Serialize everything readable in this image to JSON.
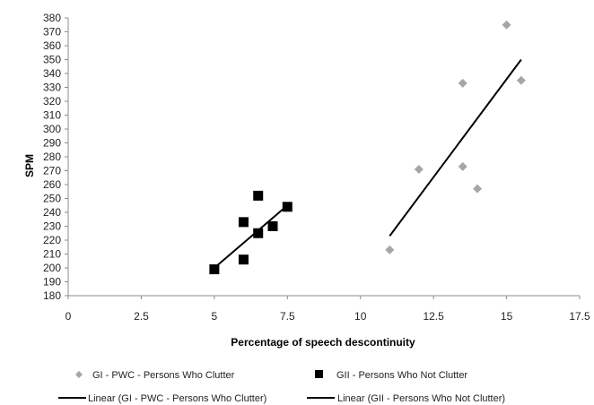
{
  "chart_data": {
    "type": "scatter",
    "title": "",
    "xlabel": "Percentage of speech descontinuity",
    "ylabel": "SPM",
    "xlim": [
      0,
      17.5
    ],
    "ylim": [
      180,
      380
    ],
    "x_ticks": [
      "0",
      "2.5",
      "5",
      "7.5",
      "10",
      "12.5",
      "15",
      "17.5"
    ],
    "y_ticks": [
      "180",
      "190",
      "200",
      "210",
      "220",
      "230",
      "240",
      "250",
      "260",
      "270",
      "280",
      "290",
      "300",
      "310",
      "320",
      "330",
      "340",
      "350",
      "360",
      "370",
      "380"
    ],
    "grid": false,
    "legend_position": "bottom",
    "series": [
      {
        "name": "GI - PWC - Persons  Who Clutter",
        "marker": "diamond",
        "color": "#a6a6a6",
        "points": [
          {
            "x": 11,
            "y": 213
          },
          {
            "x": 12,
            "y": 271
          },
          {
            "x": 13.5,
            "y": 273
          },
          {
            "x": 13.5,
            "y": 333
          },
          {
            "x": 14,
            "y": 257
          },
          {
            "x": 15,
            "y": 375
          },
          {
            "x": 15.5,
            "y": 335
          }
        ]
      },
      {
        "name": "GII - Persons Who Not Clutter",
        "marker": "square",
        "color": "#000000",
        "points": [
          {
            "x": 5,
            "y": 199
          },
          {
            "x": 6,
            "y": 233
          },
          {
            "x": 6,
            "y": 206
          },
          {
            "x": 6.5,
            "y": 252
          },
          {
            "x": 6.5,
            "y": 225
          },
          {
            "x": 7,
            "y": 230
          },
          {
            "x": 7.5,
            "y": 244
          }
        ]
      }
    ],
    "trendlines": [
      {
        "name": "Linear (GI - PWC - Persons  Who Clutter)",
        "type": "linear",
        "color": "#000000",
        "from": {
          "x": 11,
          "y": 223
        },
        "to": {
          "x": 15.5,
          "y": 350
        }
      },
      {
        "name": "Linear (GII - Persons Who Not Clutter)",
        "type": "linear",
        "color": "#000000",
        "from": {
          "x": 5,
          "y": 200
        },
        "to": {
          "x": 7.5,
          "y": 245
        }
      }
    ]
  }
}
